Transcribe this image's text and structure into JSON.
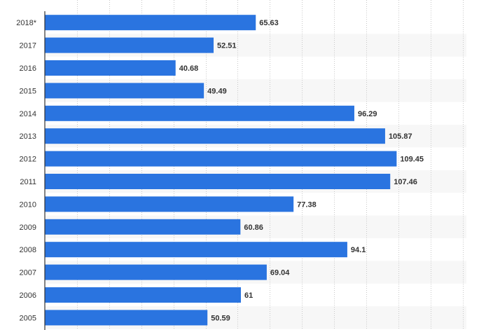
{
  "chart_data": {
    "type": "bar",
    "orientation": "horizontal",
    "categories": [
      "2018*",
      "2017",
      "2016",
      "2015",
      "2014",
      "2013",
      "2012",
      "2011",
      "2010",
      "2009",
      "2008",
      "2007",
      "2006",
      "2005"
    ],
    "values": [
      65.63,
      52.51,
      40.68,
      49.49,
      96.29,
      105.87,
      109.45,
      107.46,
      77.38,
      60.86,
      94.1,
      69.04,
      61,
      50.59
    ],
    "value_labels": [
      "65.63",
      "52.51",
      "40.68",
      "49.49",
      "96.29",
      "105.87",
      "109.45",
      "107.46",
      "77.38",
      "60.86",
      "94.1",
      "69.04",
      "61",
      "50.59"
    ],
    "title": "",
    "xlabel": "",
    "ylabel": "",
    "xlim": [
      0,
      130
    ],
    "grid": true,
    "legend": "none",
    "colors": {
      "bar": "#2a74e0",
      "band": "#f7f7f7",
      "grid": "#c8c8c8",
      "axis": "#333333",
      "text": "#333333"
    }
  }
}
